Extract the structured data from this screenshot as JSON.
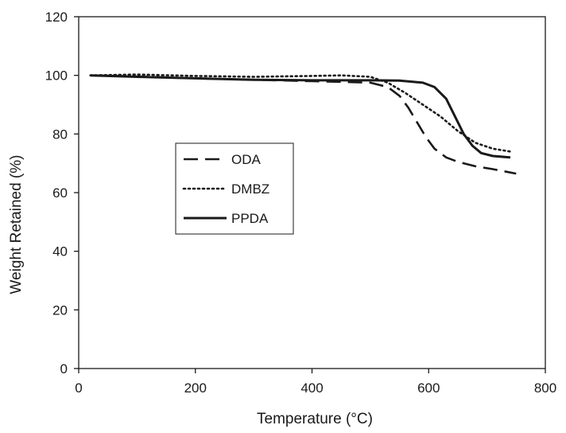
{
  "chart_data": {
    "type": "line",
    "xlabel": "Temperature (°C)",
    "ylabel": "Weight Retained (%)",
    "xlim": [
      0,
      800
    ],
    "ylim": [
      0,
      120
    ],
    "xticks": [
      0,
      200,
      400,
      600,
      800
    ],
    "yticks": [
      0,
      20,
      40,
      60,
      80,
      100,
      120
    ],
    "grid": false,
    "legend_position": "center-left",
    "series": [
      {
        "name": "ODA",
        "style": "dashed",
        "color": "#1a1a1a",
        "x": [
          20,
          100,
          200,
          300,
          400,
          450,
          500,
          530,
          550,
          565,
          580,
          595,
          610,
          630,
          650,
          680,
          710,
          750
        ],
        "y": [
          100,
          99.6,
          99,
          98.5,
          98,
          97.8,
          97.5,
          96,
          93,
          89,
          84,
          79,
          75,
          72,
          70.5,
          69,
          68,
          66.5
        ]
      },
      {
        "name": "DMBZ",
        "style": "dotted",
        "color": "#1a1a1a",
        "x": [
          20,
          100,
          200,
          300,
          400,
          450,
          500,
          530,
          560,
          590,
          620,
          650,
          680,
          710,
          740
        ],
        "y": [
          100,
          100.3,
          99.8,
          99.5,
          99.8,
          100,
          99.5,
          97.5,
          94,
          90,
          86,
          81,
          77,
          75,
          74
        ]
      },
      {
        "name": "PPDA",
        "style": "solid",
        "color": "#1a1a1a",
        "x": [
          20,
          100,
          200,
          300,
          400,
          500,
          550,
          590,
          610,
          630,
          645,
          660,
          675,
          690,
          710,
          740
        ],
        "y": [
          100,
          99.5,
          99,
          98.5,
          98.3,
          98.3,
          98.2,
          97.5,
          96,
          92,
          86,
          80,
          76,
          73.5,
          72.5,
          72
        ]
      }
    ]
  }
}
